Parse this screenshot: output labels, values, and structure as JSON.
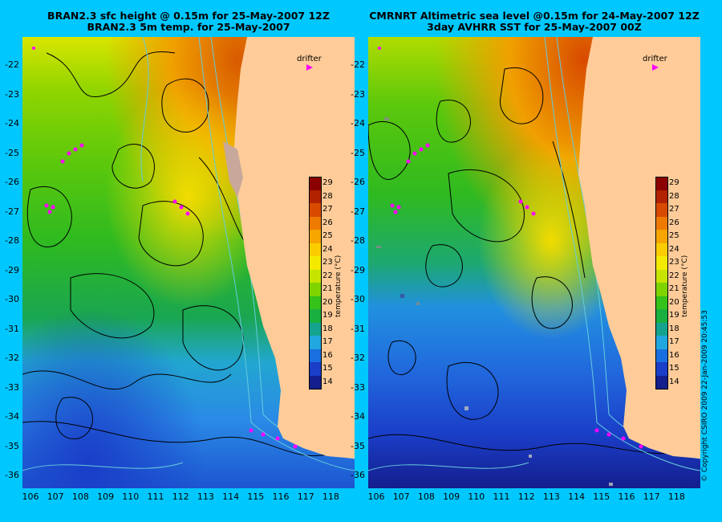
{
  "left_panel": {
    "title_line1": "BRAN2.3 sfc height @ 0.15m for 25-May-2007 12Z",
    "title_line2": "BRAN2.3 5m temp. for 25-May-2007",
    "legend_label": "drifter"
  },
  "right_panel": {
    "title_line1": "CMRNRT Altimetric sea level  @0.15m  for 24-May-2007 12Z",
    "title_line2": "3day AVHRR SST for 25-May-2007 00Z",
    "legend_label": "drifter"
  },
  "axes": {
    "lat_labels": [
      "-22",
      "-23",
      "-24",
      "-25",
      "-26",
      "-27",
      "-28",
      "-29",
      "-30",
      "-31",
      "-32",
      "-33",
      "-34",
      "-35",
      "-36"
    ],
    "lon_labels": [
      "106",
      "107",
      "108",
      "109",
      "110",
      "111",
      "112",
      "113",
      "114",
      "115",
      "116",
      "117",
      "118"
    ]
  },
  "colorbar": {
    "title": "temperature (°C)",
    "ticks": [
      "29",
      "28",
      "27",
      "26",
      "25",
      "24",
      "23",
      "22",
      "21",
      "20",
      "19",
      "18",
      "17",
      "16",
      "15",
      "14"
    ],
    "colors": [
      "#8b0000",
      "#b22200",
      "#d84a00",
      "#ef7a00",
      "#f7a600",
      "#fbcd00",
      "#f3ea00",
      "#c6e400",
      "#7fd400",
      "#35c21a",
      "#19b040",
      "#13a38e",
      "#21a7e0",
      "#1a6fe0",
      "#1a3ec8",
      "#141e8c"
    ]
  },
  "copyright": "© Copyright CSIRO 2009  22-Jan-2009 20:45:53",
  "colors": {
    "background": "#00c8ff",
    "land": "#ffcc99",
    "contour": "#000000",
    "isobath": "#66ccdd",
    "drifter": "#ff00ff"
  }
}
